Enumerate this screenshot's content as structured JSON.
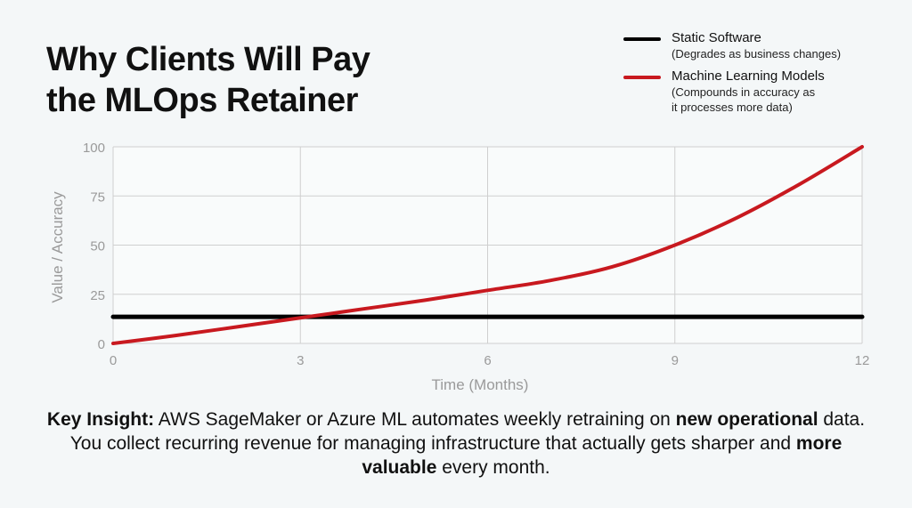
{
  "title_line1": "Why Clients Will Pay",
  "title_line2": "the MLOps Retainer",
  "chart_data": {
    "type": "line",
    "xlabel": "Time (Months)",
    "ylabel": "Value / Accuracy",
    "xlim": [
      0,
      12
    ],
    "ylim": [
      0,
      100
    ],
    "xticks": [
      0,
      3,
      6,
      9,
      12
    ],
    "yticks": [
      0,
      25,
      50,
      75,
      100
    ],
    "grid": true,
    "legend_position": "top-right",
    "series": [
      {
        "name": "Static Software",
        "description": "(Degrades as business changes)",
        "color": "#000000",
        "x": [
          0,
          12
        ],
        "y": [
          13.5,
          13.5
        ]
      },
      {
        "name": "Machine Learning Models",
        "description_lines": [
          "(Compounds in accuracy as",
          "it processes more data)"
        ],
        "color": "#c8191f",
        "x": [
          0,
          1,
          2,
          3,
          4,
          5,
          6,
          7,
          8,
          9,
          10,
          11,
          12
        ],
        "y": [
          0,
          4,
          8.5,
          13,
          17.5,
          22,
          27,
          32,
          39,
          50,
          64,
          81,
          100
        ]
      }
    ]
  },
  "insight": {
    "label": "Key Insight:",
    "t1": " AWS SageMaker or Azure ML automates weekly retraining on ",
    "b1": "new operational",
    "t2": " data. You collect recurring revenue for managing infrastructure that actually gets sharper and ",
    "b2": "more valuable",
    "t3": " every month."
  }
}
